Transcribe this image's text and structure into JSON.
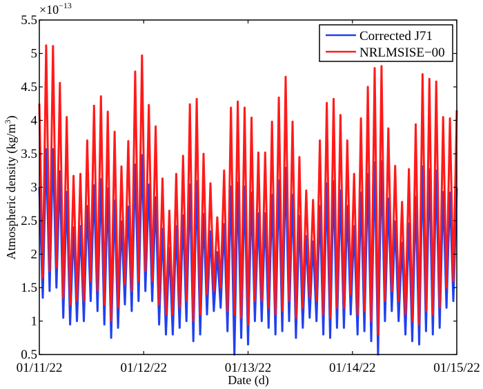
{
  "chart_data": {
    "type": "line",
    "title": "",
    "xlabel": "Date (d)",
    "ylabel": "Atmospheric density (kg/m³)",
    "ylabel_main": "Atmospheric density (kg/m",
    "ylabel_sup": "3",
    "ylabel_close": ")",
    "y_multiplier": "×10",
    "y_multiplier_exp": "−13",
    "ylim": [
      0.5,
      5.5
    ],
    "yticks": [
      "0.5",
      "1",
      "1.5",
      "2",
      "2.5",
      "3",
      "3.5",
      "4",
      "4.5",
      "5",
      "5.5"
    ],
    "xlim": [
      "01/11/22",
      "01/15/22"
    ],
    "xticks": [
      "01/11/22",
      "01/12/22",
      "01/13/22",
      "01/14/22",
      "01/15/22"
    ],
    "x_start": "01/11/22 00:00",
    "x_end": "01/15/22 00:00",
    "x_spacing": "even",
    "grid": false,
    "legend_position": "top-right",
    "series": [
      {
        "name": "Corrected J71",
        "color": "#2040f0",
        "start": 3.0,
        "troughs": [
          1.35,
          1.45,
          1.5,
          1.05,
          0.95,
          1.0,
          1.0,
          1.3,
          1.15,
          0.95,
          0.75,
          0.9,
          1.25,
          1.15,
          1.3,
          1.45,
          1.3,
          0.95,
          0.8,
          0.8,
          0.9,
          1.0,
          0.7,
          0.8,
          1.1,
          1.15,
          1.2,
          0.85,
          0.5,
          0.75,
          0.65,
          1.0,
          1.0,
          0.9,
          0.8,
          0.85,
          1.0,
          0.75,
          0.9,
          1.05,
          1.0,
          0.8,
          0.75,
          0.9,
          0.9,
          1.1,
          0.8,
          0.85,
          0.7,
          0.5,
          1.0,
          1.15,
          1.0,
          0.8,
          0.7,
          0.65,
          0.85,
          0.8,
          0.9,
          1.2,
          1.3
        ],
        "peaks": [
          3.57,
          3.57,
          3.24,
          2.93,
          2.4,
          2.42,
          2.72,
          3.03,
          3.12,
          2.98,
          2.8,
          2.49,
          2.71,
          3.34,
          3.48,
          3.04,
          2.85,
          2.38,
          2.09,
          2.42,
          2.58,
          3.04,
          3.09,
          2.6,
          2.34,
          2.03,
          2.45,
          3.01,
          3.07,
          3.01,
          2.92,
          2.61,
          2.61,
          2.89,
          3.1,
          3.29,
          2.89,
          2.57,
          2.27,
          2.19,
          2.72,
          3.06,
          3.09,
          2.95,
          2.72,
          2.42,
          2.92,
          3.2,
          3.37,
          3.39,
          2.83,
          2.49,
          2.17,
          2.46,
          2.86,
          3.31,
          3.27,
          3.25,
          2.93,
          2.92,
          2.99
        ]
      },
      {
        "name": "NRLMSISE−00",
        "color": "#ff1a1a",
        "start": 4.25,
        "troughs": [
          1.65,
          1.75,
          1.8,
          1.35,
          1.25,
          1.3,
          1.3,
          1.6,
          1.45,
          1.25,
          1.0,
          1.2,
          1.55,
          1.45,
          1.6,
          1.75,
          1.6,
          1.25,
          1.1,
          1.1,
          1.2,
          1.3,
          1.0,
          1.1,
          1.4,
          1.45,
          1.5,
          1.15,
          1.1,
          1.05,
          0.95,
          1.3,
          1.3,
          1.2,
          1.1,
          1.15,
          1.3,
          1.05,
          1.2,
          1.35,
          1.3,
          1.1,
          1.05,
          1.2,
          1.2,
          1.4,
          1.1,
          1.15,
          1.0,
          0.8,
          1.3,
          1.45,
          1.3,
          1.1,
          1.0,
          0.95,
          1.15,
          1.1,
          1.2,
          1.5,
          1.6
        ],
        "peaks": [
          5.12,
          5.11,
          4.56,
          4.05,
          3.17,
          3.2,
          3.7,
          4.22,
          4.36,
          4.13,
          3.83,
          3.31,
          3.69,
          4.73,
          4.97,
          4.23,
          3.91,
          3.13,
          2.65,
          3.2,
          3.47,
          4.24,
          4.32,
          3.5,
          3.06,
          2.55,
          3.25,
          4.19,
          4.28,
          4.19,
          4.04,
          3.52,
          3.52,
          3.98,
          4.34,
          4.65,
          3.98,
          3.45,
          2.95,
          2.81,
          3.7,
          4.26,
          4.32,
          4.08,
          3.7,
          3.2,
          4.03,
          4.5,
          4.78,
          4.81,
          3.88,
          3.32,
          2.78,
          3.27,
          3.94,
          4.69,
          4.62,
          4.58,
          4.05,
          4.03,
          4.15
        ]
      }
    ]
  }
}
